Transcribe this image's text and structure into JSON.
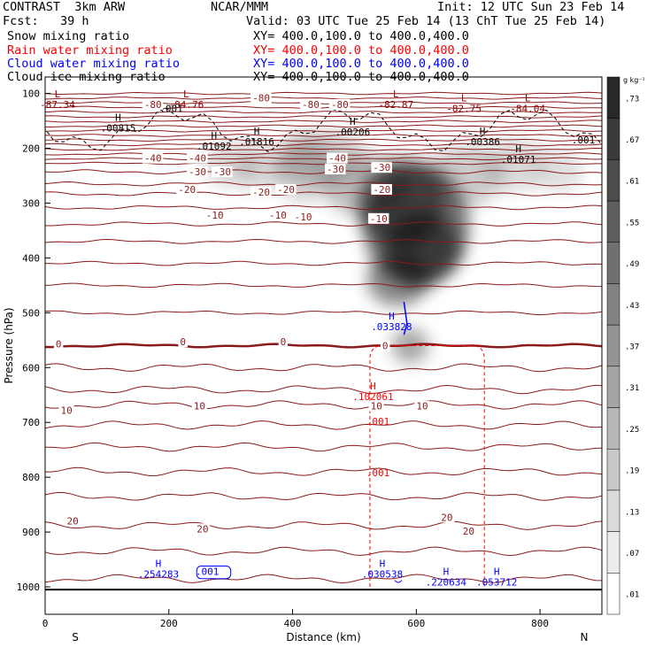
{
  "header": {
    "model": "CONTRAST  3km ARW",
    "center": "NCAR/MMM",
    "init": "Init: 12 UTC Sun 23 Feb 14",
    "fcst": "Fcst:   39 h",
    "valid": "Valid: 03 UTC Tue 25 Feb 14 (13 ChT Tue 25 Feb 14)"
  },
  "legend": [
    {
      "label": "Snow mixing ratio",
      "xy": "XY= 400.0,100.0 to 400.0,400.0",
      "color": "#000000"
    },
    {
      "label": "Rain water mixing ratio",
      "xy": "XY= 400.0,100.0 to 400.0,400.0",
      "color": "#ff0000"
    },
    {
      "label": "Cloud water mixing ratio",
      "xy": "XY= 400.0,100.0 to 400.0,400.0",
      "color": "#0000ff"
    },
    {
      "label": "Cloud ice mixing ratio",
      "xy": "XY= 400.0,100.0 to 400.0,400.0",
      "color": "#000000"
    }
  ],
  "chart_data": {
    "type": "contour cross-section",
    "xlabel": "Distance (km)",
    "ylabel": "Pressure (hPa)",
    "x_ticks": [
      0,
      200,
      400,
      600,
      800
    ],
    "xlim": [
      0,
      900
    ],
    "y_ticks": [
      100,
      200,
      300,
      400,
      500,
      600,
      700,
      800,
      900,
      1000
    ],
    "ylim": [
      1050,
      70
    ],
    "x_end_labels": {
      "left": "S",
      "right": "N"
    },
    "colorbar": {
      "unit": "g kg⁻¹",
      "labels": [
        ".73",
        ".67",
        ".61",
        ".55",
        ".49",
        ".43",
        ".37",
        ".31",
        ".25",
        ".19",
        ".13",
        ".07",
        ".01"
      ]
    },
    "temperature_contours": [
      {
        "value": -80,
        "p": 106
      },
      {
        "value": -80,
        "p": 118
      },
      {
        "value": -80,
        "p": 128
      },
      {
        "value": -40,
        "p": 217
      },
      {
        "value": -30,
        "p": 243
      },
      {
        "value": -20,
        "p": 283
      },
      {
        "value": -10,
        "p": 338
      },
      {
        "value": 0,
        "p": 560
      },
      {
        "value": 10,
        "p": 668
      },
      {
        "value": 20,
        "p": 888
      }
    ],
    "temperature_labels": [
      {
        "text": "-80",
        "x": 335,
        "p": 108
      },
      {
        "text": "-80",
        "x": 160,
        "p": 120
      },
      {
        "text": "-80",
        "x": 415,
        "p": 120
      },
      {
        "text": "-80",
        "x": 462,
        "p": 120
      },
      {
        "text": "-40",
        "x": 160,
        "p": 218
      },
      {
        "text": "-40",
        "x": 232,
        "p": 218
      },
      {
        "text": "-40",
        "x": 458,
        "p": 218
      },
      {
        "text": "-30",
        "x": 232,
        "p": 243
      },
      {
        "text": "-30",
        "x": 272,
        "p": 243
      },
      {
        "text": "-30",
        "x": 455,
        "p": 238
      },
      {
        "text": "-30",
        "x": 530,
        "p": 235
      },
      {
        "text": "-20",
        "x": 215,
        "p": 275
      },
      {
        "text": "-20",
        "x": 335,
        "p": 280
      },
      {
        "text": "-20",
        "x": 375,
        "p": 275
      },
      {
        "text": "-20",
        "x": 530,
        "p": 275
      },
      {
        "text": "-10",
        "x": 260,
        "p": 322
      },
      {
        "text": "-10",
        "x": 362,
        "p": 322
      },
      {
        "text": "-10",
        "x": 403,
        "p": 325
      },
      {
        "text": "-10",
        "x": 525,
        "p": 328
      },
      {
        "text": "0",
        "x": 17,
        "p": 557
      },
      {
        "text": "0",
        "x": 218,
        "p": 553
      },
      {
        "text": "0",
        "x": 380,
        "p": 553
      },
      {
        "text": "0",
        "x": 545,
        "p": 560
      },
      {
        "text": "10",
        "x": 25,
        "p": 678
      },
      {
        "text": "10",
        "x": 240,
        "p": 670
      },
      {
        "text": "10",
        "x": 526,
        "p": 670
      },
      {
        "text": "10",
        "x": 600,
        "p": 670
      },
      {
        "text": "20",
        "x": 35,
        "p": 880
      },
      {
        "text": "20",
        "x": 245,
        "p": 894
      },
      {
        "text": "20",
        "x": 640,
        "p": 873
      },
      {
        "text": "20",
        "x": 675,
        "p": 898
      }
    ],
    "min_max_annotations": [
      {
        "kind": "H",
        "value": ".00815",
        "x": 118,
        "p": 160,
        "color": "#000000"
      },
      {
        "kind": "H",
        "value": ".01092",
        "x": 273,
        "p": 193,
        "color": "#000000"
      },
      {
        "kind": "H",
        "value": ".01816",
        "x": 342,
        "p": 185,
        "color": "#000000"
      },
      {
        "kind": "H",
        "value": ".00206",
        "x": 497,
        "p": 167,
        "color": "#000000"
      },
      {
        "kind": "H",
        "value": ".00386",
        "x": 707,
        "p": 185,
        "color": "#000000"
      },
      {
        "kind": "H",
        "value": ".01071",
        "x": 765,
        "p": 217,
        "color": "#000000"
      },
      {
        "kind": "L",
        "value": "-87.34",
        "x": 20,
        "p": 117,
        "color": "#8b0000"
      },
      {
        "kind": "L",
        "value": "-84.76",
        "x": 228,
        "p": 117,
        "color": "#8b0000"
      },
      {
        "kind": "L",
        "value": "-82.87",
        "x": 567,
        "p": 117,
        "color": "#8b0000"
      },
      {
        "kind": "L",
        "value": "-82.75",
        "x": 677,
        "p": 124,
        "color": "#8b0000"
      },
      {
        "kind": "L",
        "value": "-84.04",
        "x": 780,
        "p": 124,
        "color": "#8b0000"
      },
      {
        "kind": "H",
        "value": ".033828",
        "x": 560,
        "p": 522,
        "color": "#0000ff"
      },
      {
        "kind": "H",
        "value": ".102061",
        "x": 530,
        "p": 650,
        "color": "#ff0000"
      },
      {
        "kind": "H",
        "value": ".254283",
        "x": 183,
        "p": 973,
        "color": "#0000ff"
      },
      {
        "kind": "H",
        "value": ".030538",
        "x": 545,
        "p": 973,
        "color": "#0000ff"
      },
      {
        "kind": "H",
        "value": ".220634",
        "x": 648,
        "p": 988,
        "color": "#0000ff"
      },
      {
        "kind": "H",
        "value": ".053712",
        "x": 730,
        "p": 988,
        "color": "#0000ff"
      }
    ],
    "contour_value_labels": [
      {
        "text": ".001",
        "x": 204,
        "p": 127,
        "color": "#000000"
      },
      {
        "text": ".001",
        "x": 870,
        "p": 185,
        "color": "#000000"
      },
      {
        "text": ".001",
        "x": 538,
        "p": 698,
        "color": "#ff0000"
      },
      {
        "text": ".001",
        "x": 538,
        "p": 792,
        "color": "#ff0000"
      },
      {
        "text": ".001",
        "x": 262,
        "p": 972,
        "color": "#0000ff"
      }
    ]
  }
}
